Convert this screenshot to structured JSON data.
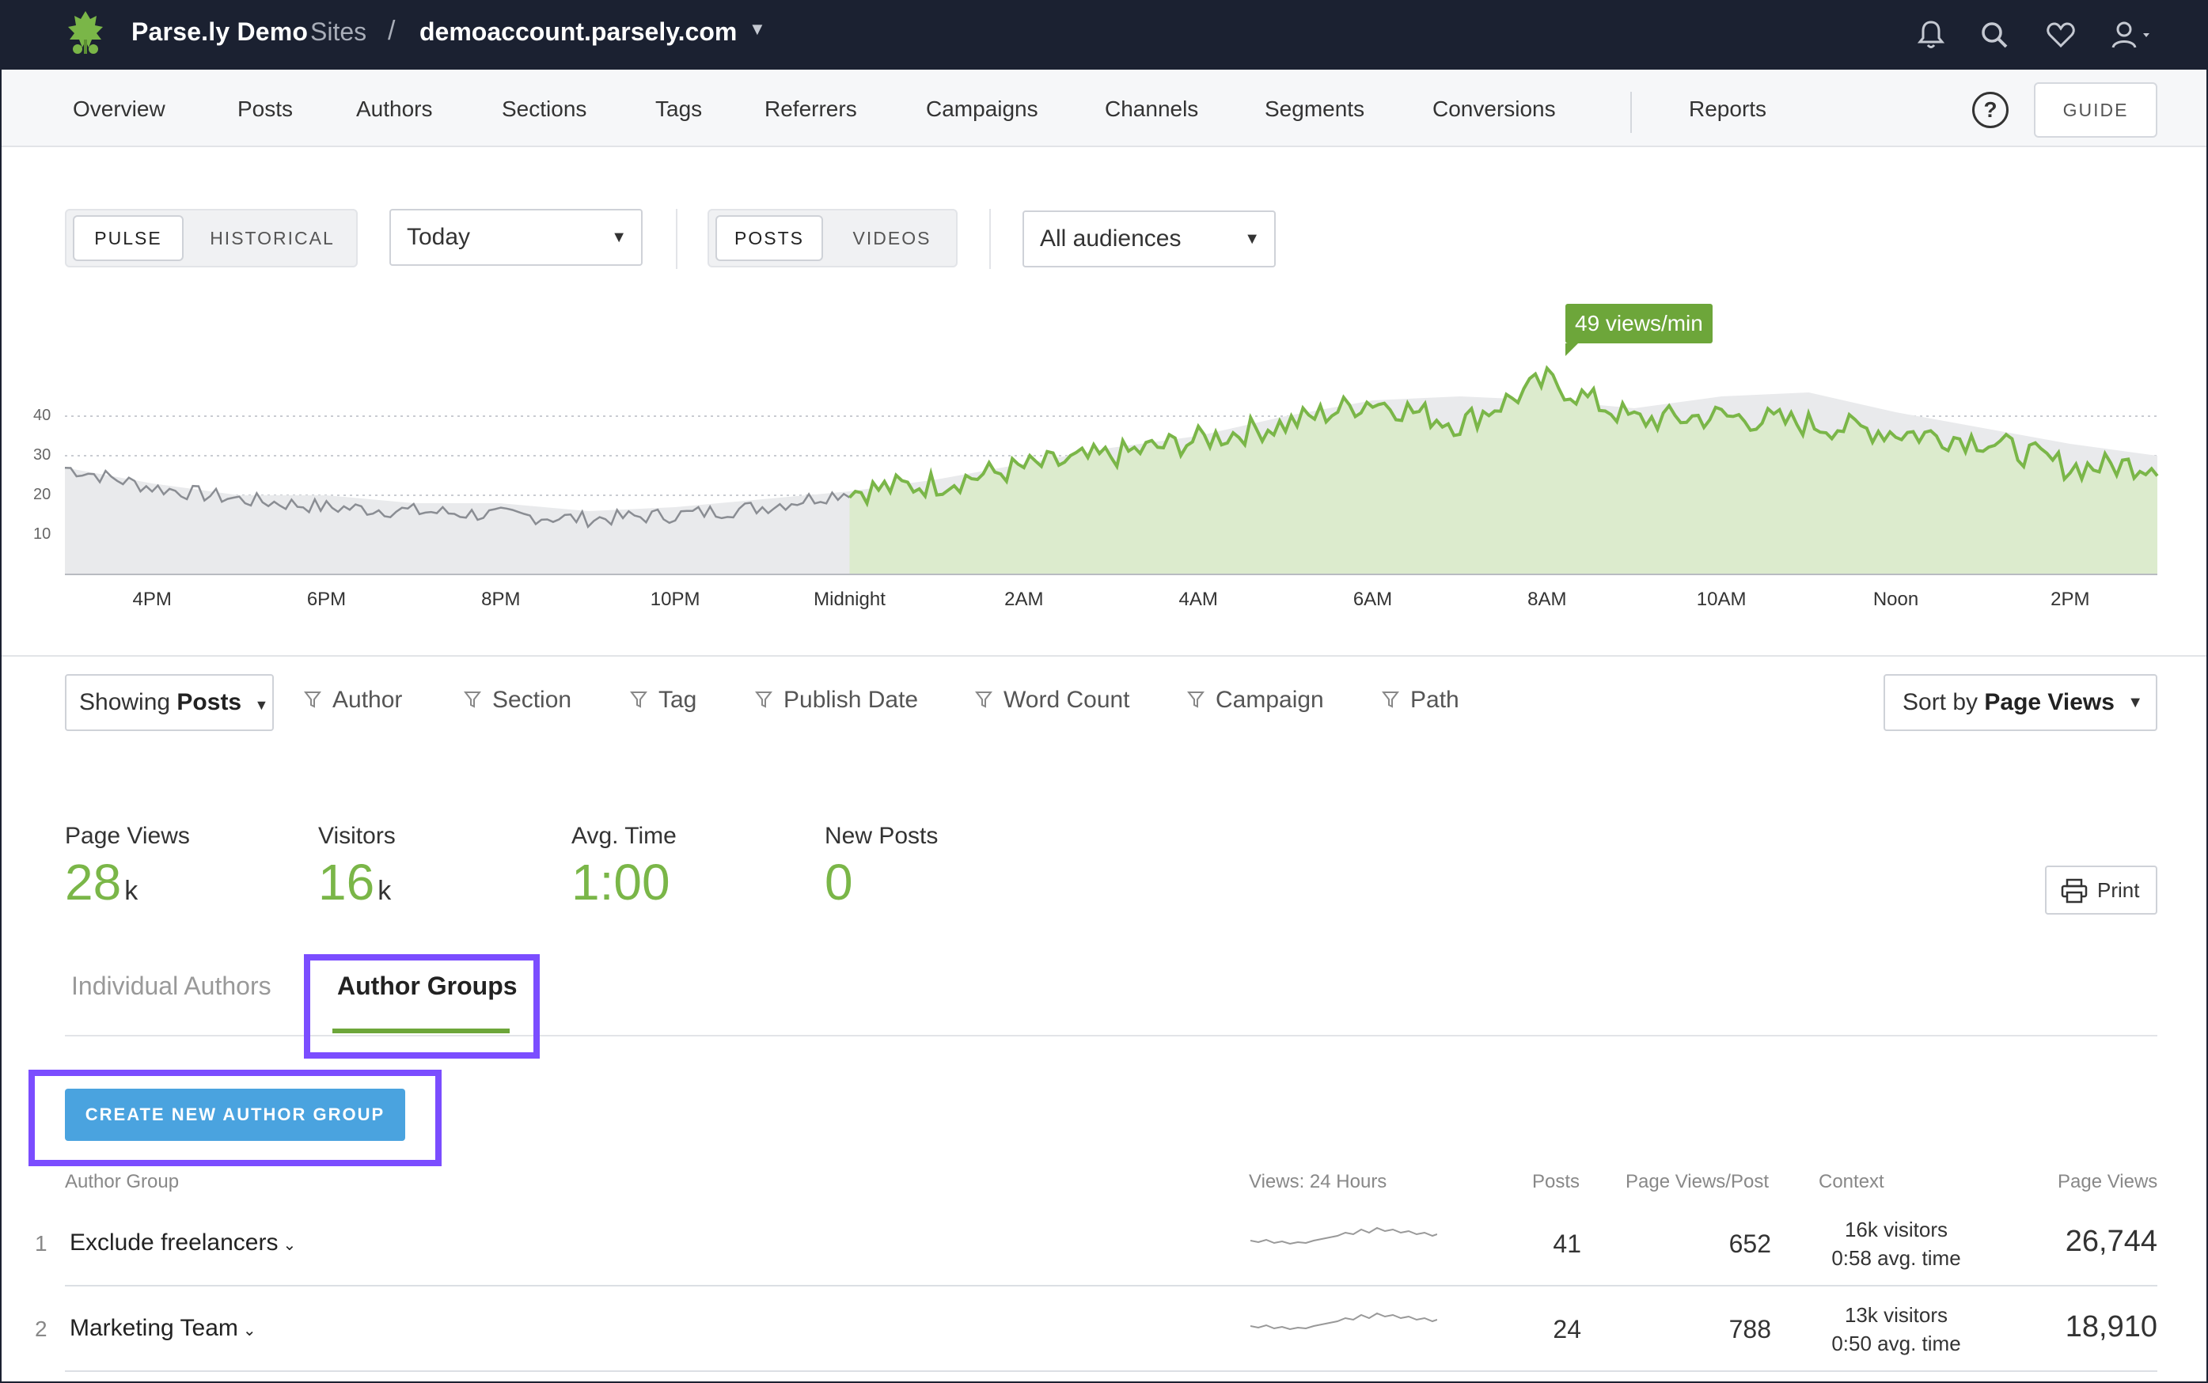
{
  "topbar": {
    "brand": "Parse.ly Demo",
    "sites_label": "Sites",
    "separator": "/",
    "domain": "demoaccount.parsely.com",
    "icons": [
      "bell-icon",
      "search-icon",
      "heart-icon",
      "user-icon"
    ]
  },
  "nav": {
    "items": [
      "Overview",
      "Posts",
      "Authors",
      "Sections",
      "Tags",
      "Referrers",
      "Campaigns",
      "Channels",
      "Segments",
      "Conversions"
    ],
    "reports": "Reports",
    "help": "?",
    "guide": "GUIDE"
  },
  "controls": {
    "mode": {
      "options": [
        "PULSE",
        "HISTORICAL"
      ],
      "selected": "PULSE"
    },
    "period": "Today",
    "content_type": {
      "options": [
        "POSTS",
        "VIDEOS"
      ],
      "selected": "POSTS"
    },
    "audience": "All audiences"
  },
  "chart": {
    "tooltip": "49 views/min",
    "colors": {
      "current": "#7ab648",
      "current_fill": "#dcebcd",
      "previous_fill": "#e9eaec",
      "past_line": "#8a8d93"
    }
  },
  "chart_data": {
    "type": "area",
    "title": "",
    "xlabel": "",
    "ylabel": "",
    "y_ticks": [
      "10",
      "20",
      "30",
      "40"
    ],
    "x_ticks": [
      "4PM",
      "6PM",
      "8PM",
      "10PM",
      "Midnight",
      "2AM",
      "4AM",
      "6AM",
      "8AM",
      "10AM",
      "Noon",
      "2PM"
    ],
    "ylim": [
      0,
      50
    ],
    "grid": true,
    "series": [
      {
        "x": [
          "3PM",
          "4PM",
          "5PM",
          "6PM",
          "7PM",
          "8PM",
          "9PM",
          "10PM",
          "11PM",
          "Midnight",
          "1AM",
          "2AM",
          "3AM",
          "4AM",
          "5AM",
          "6AM",
          "7AM",
          "8AM",
          "9AM",
          "10AM",
          "11AM",
          "Noon",
          "1PM",
          "2PM",
          "2:45PM"
        ],
        "values": [
          27,
          23,
          20,
          20,
          18,
          18,
          16,
          17,
          19,
          21,
          24,
          28,
          32,
          35,
          40,
          44,
          45,
          44,
          42,
          45,
          46,
          41,
          37,
          33,
          30
        ]
      },
      {
        "x": [
          "3PM",
          "4PM",
          "5PM",
          "6PM",
          "7PM",
          "8PM",
          "9PM",
          "10PM",
          "11PM",
          "Midnight",
          "1AM",
          "2AM",
          "3AM",
          "4AM",
          "5AM",
          "6AM",
          "7AM",
          "8AM",
          "9AM",
          "10AM",
          "11AM",
          "Noon",
          "1PM",
          "2PM",
          "2:45PM"
        ],
        "values": [
          27,
          22,
          19,
          17,
          16,
          15,
          14,
          15,
          17,
          21,
          23,
          27,
          30,
          34,
          38,
          44,
          38,
          49,
          39,
          40,
          38,
          36,
          34,
          27,
          28
        ]
      }
    ]
  },
  "filters": {
    "showing_prefix": "Showing",
    "showing_value": "Posts",
    "items": [
      "Author",
      "Section",
      "Tag",
      "Publish Date",
      "Word Count",
      "Campaign",
      "Path"
    ],
    "sort_prefix": "Sort by",
    "sort_value": "Page Views"
  },
  "metrics": [
    {
      "label": "Page Views",
      "value": "28",
      "unit": "k"
    },
    {
      "label": "Visitors",
      "value": "16",
      "unit": "k"
    },
    {
      "label": "Avg. Time",
      "value": "1:00",
      "unit": ""
    },
    {
      "label": "New Posts",
      "value": "0",
      "unit": ""
    }
  ],
  "print": "Print",
  "tabs": {
    "items": [
      "Individual Authors",
      "Author Groups"
    ],
    "selected": "Author Groups"
  },
  "create_button": "CREATE NEW AUTHOR GROUP",
  "table": {
    "headers": [
      "Author Group",
      "Views: 24 Hours",
      "Posts",
      "Page Views/Post",
      "Context",
      "Page Views"
    ],
    "rows": [
      {
        "rank": "1",
        "name": "Exclude freelancers",
        "posts": "41",
        "pv_per_post": "652",
        "visitors": "16k visitors",
        "avg_time": "0:58 avg. time",
        "page_views": "26,744"
      },
      {
        "rank": "2",
        "name": "Marketing Team",
        "posts": "24",
        "pv_per_post": "788",
        "visitors": "13k visitors",
        "avg_time": "0:50 avg. time",
        "page_views": "18,910"
      }
    ]
  },
  "highlight_color": "#7b4dff"
}
